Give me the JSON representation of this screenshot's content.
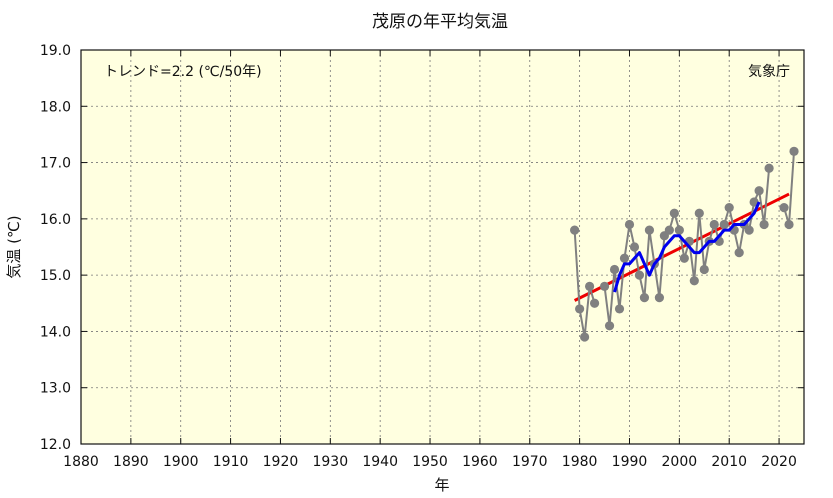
{
  "chart_data": {
    "type": "line",
    "title": "茂原の年平均気温",
    "xlabel": "年",
    "ylabel": "気温 (℃)",
    "xlim": [
      1880,
      2025
    ],
    "ylim": [
      12.0,
      19.0
    ],
    "x_ticks": [
      "1880",
      "1890",
      "1900",
      "1910",
      "1920",
      "1930",
      "1940",
      "1950",
      "1960",
      "1970",
      "1980",
      "1990",
      "2000",
      "2010",
      "2020"
    ],
    "y_ticks": [
      "12.0",
      "13.0",
      "14.0",
      "15.0",
      "16.0",
      "17.0",
      "18.0",
      "19.0"
    ],
    "grid": true,
    "trend_label": "トレンド=2.2 (℃/50年)",
    "source_label": "気象庁",
    "colors": {
      "annual": "#808080",
      "moving_avg": "#0000ee",
      "trend": "#ee0000",
      "plot_bg": "#ffffe0"
    },
    "series": [
      {
        "role": "annual",
        "x": [
          1979,
          1980,
          1981,
          1982,
          1983,
          1984,
          1985,
          1986,
          1987,
          1988,
          1989,
          1990,
          1991,
          1992,
          1993,
          1994,
          1995,
          1996,
          1997,
          1998,
          1999,
          2000,
          2001,
          2002,
          2003,
          2004,
          2005,
          2006,
          2007,
          2008,
          2009,
          2010,
          2011,
          2012,
          2013,
          2014,
          2015,
          2016,
          2017,
          2018,
          2021,
          2022,
          2023
        ],
        "y": [
          15.8,
          14.4,
          13.9,
          14.8,
          14.5,
          null,
          14.8,
          14.1,
          15.1,
          14.4,
          15.3,
          15.9,
          15.5,
          15.0,
          14.6,
          15.8,
          15.2,
          14.6,
          15.7,
          15.8,
          16.1,
          15.8,
          15.3,
          15.6,
          14.9,
          16.1,
          15.1,
          15.6,
          15.9,
          15.6,
          15.9,
          16.2,
          15.8,
          15.4,
          15.9,
          15.8,
          16.3,
          16.5,
          15.9,
          16.9,
          16.2,
          15.9,
          17.2
        ]
      },
      {
        "role": "moving_avg",
        "x": [
          1987,
          1988,
          1989,
          1990,
          1991,
          1992,
          1993,
          1994,
          1995,
          1996,
          1997,
          1998,
          1999,
          2000,
          2001,
          2002,
          2003,
          2004,
          2005,
          2006,
          2007,
          2008,
          2009,
          2010,
          2011,
          2012,
          2013,
          2014,
          2015,
          2016
        ],
        "y": [
          14.7,
          15.0,
          15.2,
          15.2,
          15.3,
          15.4,
          15.2,
          15.0,
          15.2,
          15.3,
          15.5,
          15.6,
          15.7,
          15.7,
          15.6,
          15.5,
          15.4,
          15.4,
          15.5,
          15.6,
          15.6,
          15.7,
          15.8,
          15.8,
          15.9,
          15.9,
          15.9,
          16.0,
          16.1,
          16.3
        ]
      },
      {
        "role": "trend",
        "x": [
          1979,
          2022
        ],
        "y": [
          14.55,
          16.44
        ]
      }
    ]
  }
}
